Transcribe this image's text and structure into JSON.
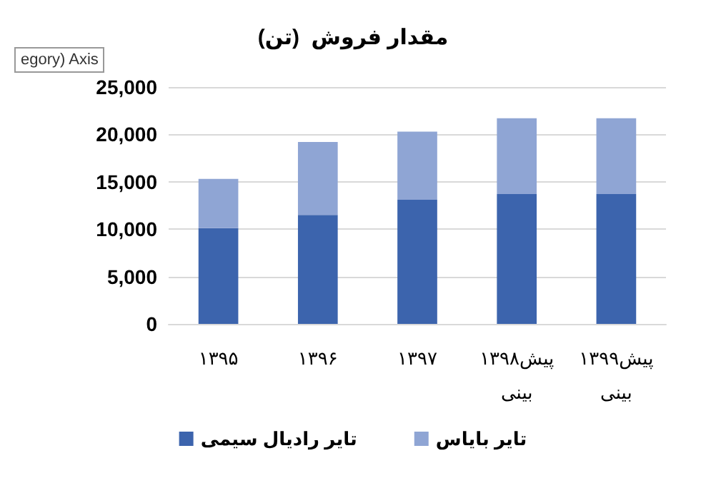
{
  "chart_data": {
    "type": "bar",
    "title": "مقدار فروش  (تن)",
    "stacked": true,
    "categories": [
      "۱۳۹۵",
      "۱۳۹۶",
      "۱۳۹۷",
      "۱۳۹۸پیش بینی",
      "۱۳۹۹پیش بینی"
    ],
    "series": [
      {
        "name": "تایر رادیال سیمی",
        "color": "#3c64ad",
        "values": [
          10100,
          11500,
          13100,
          13700,
          13700
        ]
      },
      {
        "name": "تایر بایاس",
        "color": "#8fa5d4",
        "values": [
          5200,
          7700,
          7200,
          8000,
          8000
        ]
      }
    ],
    "ylim": [
      0,
      25000
    ],
    "yticks": [
      0,
      {
        "value": 5000,
        "label": "5,000"
      },
      {
        "value": 10000,
        "label": "10,000"
      },
      {
        "value": 15000,
        "label": "15,000"
      },
      {
        "value": 20000,
        "label": "20,000"
      },
      {
        "value": 25000,
        "label": "25,000"
      }
    ],
    "grid": "y",
    "legend": "bottom",
    "annotations": [
      "egory) Axis"
    ]
  }
}
